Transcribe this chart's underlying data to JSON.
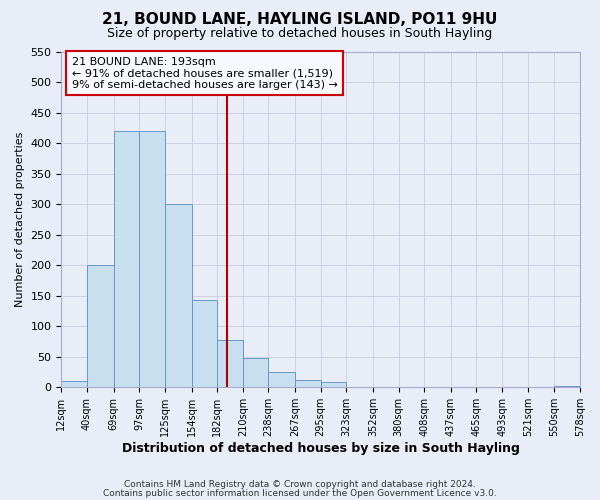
{
  "title": "21, BOUND LANE, HAYLING ISLAND, PO11 9HU",
  "subtitle": "Size of property relative to detached houses in South Hayling",
  "xlabel": "Distribution of detached houses by size in South Hayling",
  "ylabel": "Number of detached properties",
  "bin_labels": [
    "12sqm",
    "40sqm",
    "69sqm",
    "97sqm",
    "125sqm",
    "154sqm",
    "182sqm",
    "210sqm",
    "238sqm",
    "267sqm",
    "295sqm",
    "323sqm",
    "352sqm",
    "380sqm",
    "408sqm",
    "437sqm",
    "465sqm",
    "493sqm",
    "521sqm",
    "550sqm",
    "578sqm"
  ],
  "bin_edges": [
    12,
    40,
    69,
    97,
    125,
    154,
    182,
    210,
    238,
    267,
    295,
    323,
    352,
    380,
    408,
    437,
    465,
    493,
    521,
    550,
    578
  ],
  "bar_values": [
    10,
    200,
    420,
    420,
    300,
    143,
    78,
    48,
    25,
    12,
    8,
    0,
    0,
    0,
    0,
    0,
    0,
    0,
    0,
    3
  ],
  "bar_color": "#c8dff0",
  "bar_edgecolor": "#6699cc",
  "property_size": 193,
  "vline_color": "#aa0000",
  "annotation_title": "21 BOUND LANE: 193sqm",
  "annotation_line1": "← 91% of detached houses are smaller (1,519)",
  "annotation_line2": "9% of semi-detached houses are larger (143) →",
  "annotation_box_edgecolor": "#cc0000",
  "annotation_box_facecolor": "#f8f8ff",
  "ylim": [
    0,
    550
  ],
  "yticks": [
    0,
    50,
    100,
    150,
    200,
    250,
    300,
    350,
    400,
    450,
    500,
    550
  ],
  "footer1": "Contains HM Land Registry data © Crown copyright and database right 2024.",
  "footer2": "Contains public sector information licensed under the Open Government Licence v3.0.",
  "background_color": "#e8edf8",
  "grid_color": "#c8cce0"
}
